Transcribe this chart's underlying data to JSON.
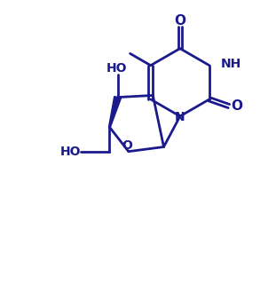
{
  "bg_color": "#ffffff",
  "line_color": "#1a1a8c",
  "line_width": 2.0,
  "font_size": 10,
  "figsize": [
    3.11,
    3.2
  ],
  "dpi": 100,
  "xlim": [
    0,
    10
  ],
  "ylim": [
    0,
    10
  ]
}
